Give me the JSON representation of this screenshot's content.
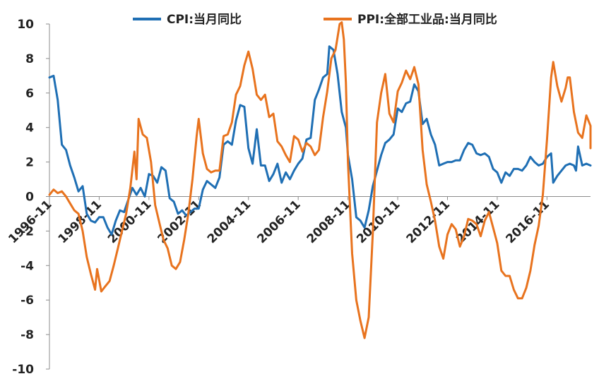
{
  "chart_data": {
    "type": "line",
    "title": "",
    "xlabel": "",
    "ylabel": "",
    "ylim": [
      -10,
      10
    ],
    "yticks": [
      -10,
      -8,
      -6,
      -4,
      -2,
      0,
      2,
      4,
      6,
      8,
      10
    ],
    "ytick_labels": [
      "-10",
      "-8",
      "-6",
      "-4",
      "-2",
      "0",
      "2",
      "4",
      "6",
      "8",
      "10"
    ],
    "xlim": [
      "1996-11",
      "2018-08"
    ],
    "xticks": [
      "1996-11",
      "1998-11",
      "2000-11",
      "2002-11",
      "2004-11",
      "2006-11",
      "2008-11",
      "2010-11",
      "2012-11",
      "2014-11",
      "2016-11"
    ],
    "legend_position": "top",
    "grid": false,
    "series": [
      {
        "name": "CPI:当月同比",
        "color": "#1f6fb4",
        "points": [
          [
            "1996-11",
            6.9
          ],
          [
            "1997-01",
            7.0
          ],
          [
            "1997-03",
            5.6
          ],
          [
            "1997-05",
            3.0
          ],
          [
            "1997-07",
            2.7
          ],
          [
            "1997-09",
            1.8
          ],
          [
            "1997-11",
            1.1
          ],
          [
            "1998-01",
            0.3
          ],
          [
            "1998-03",
            0.6
          ],
          [
            "1998-05",
            -1.0
          ],
          [
            "1998-07",
            -1.4
          ],
          [
            "1998-09",
            -1.5
          ],
          [
            "1998-11",
            -1.2
          ],
          [
            "1999-01",
            -1.2
          ],
          [
            "1999-03",
            -1.8
          ],
          [
            "1999-05",
            -2.2
          ],
          [
            "1999-07",
            -1.4
          ],
          [
            "1999-09",
            -0.8
          ],
          [
            "1999-11",
            -0.9
          ],
          [
            "2000-01",
            -0.2
          ],
          [
            "2000-03",
            0.5
          ],
          [
            "2000-05",
            0.1
          ],
          [
            "2000-07",
            0.5
          ],
          [
            "2000-09",
            0.0
          ],
          [
            "2000-11",
            1.3
          ],
          [
            "2001-01",
            1.2
          ],
          [
            "2001-03",
            0.8
          ],
          [
            "2001-05",
            1.7
          ],
          [
            "2001-07",
            1.5
          ],
          [
            "2001-09",
            -0.1
          ],
          [
            "2001-11",
            -0.3
          ],
          [
            "2002-01",
            -1.0
          ],
          [
            "2002-03",
            -0.8
          ],
          [
            "2002-05",
            -1.1
          ],
          [
            "2002-07",
            -0.9
          ],
          [
            "2002-09",
            -0.7
          ],
          [
            "2002-11",
            -0.7
          ],
          [
            "2003-01",
            0.4
          ],
          [
            "2003-03",
            0.9
          ],
          [
            "2003-05",
            0.7
          ],
          [
            "2003-07",
            0.5
          ],
          [
            "2003-09",
            1.1
          ],
          [
            "2003-11",
            3.0
          ],
          [
            "2004-01",
            3.2
          ],
          [
            "2004-03",
            3.0
          ],
          [
            "2004-05",
            4.4
          ],
          [
            "2004-07",
            5.3
          ],
          [
            "2004-09",
            5.2
          ],
          [
            "2004-11",
            2.8
          ],
          [
            "2005-01",
            1.9
          ],
          [
            "2005-03",
            3.9
          ],
          [
            "2005-05",
            1.8
          ],
          [
            "2005-07",
            1.8
          ],
          [
            "2005-09",
            0.9
          ],
          [
            "2005-11",
            1.3
          ],
          [
            "2006-01",
            1.9
          ],
          [
            "2006-03",
            0.8
          ],
          [
            "2006-05",
            1.4
          ],
          [
            "2006-07",
            1.0
          ],
          [
            "2006-09",
            1.5
          ],
          [
            "2006-11",
            1.9
          ],
          [
            "2007-01",
            2.2
          ],
          [
            "2007-03",
            3.3
          ],
          [
            "2007-05",
            3.4
          ],
          [
            "2007-07",
            5.6
          ],
          [
            "2007-09",
            6.2
          ],
          [
            "2007-11",
            6.9
          ],
          [
            "2008-01",
            7.1
          ],
          [
            "2008-02",
            8.7
          ],
          [
            "2008-04",
            8.5
          ],
          [
            "2008-06",
            7.1
          ],
          [
            "2008-08",
            4.9
          ],
          [
            "2008-10",
            4.0
          ],
          [
            "2008-11",
            2.4
          ],
          [
            "2009-01",
            1.0
          ],
          [
            "2009-03",
            -1.2
          ],
          [
            "2009-05",
            -1.4
          ],
          [
            "2009-07",
            -1.8
          ],
          [
            "2009-09",
            -0.8
          ],
          [
            "2009-11",
            0.6
          ],
          [
            "2010-01",
            1.5
          ],
          [
            "2010-03",
            2.4
          ],
          [
            "2010-05",
            3.1
          ],
          [
            "2010-07",
            3.3
          ],
          [
            "2010-09",
            3.6
          ],
          [
            "2010-11",
            5.1
          ],
          [
            "2011-01",
            4.9
          ],
          [
            "2011-03",
            5.4
          ],
          [
            "2011-05",
            5.5
          ],
          [
            "2011-07",
            6.5
          ],
          [
            "2011-09",
            6.1
          ],
          [
            "2011-11",
            4.2
          ],
          [
            "2012-01",
            4.5
          ],
          [
            "2012-03",
            3.6
          ],
          [
            "2012-05",
            3.0
          ],
          [
            "2012-07",
            1.8
          ],
          [
            "2012-09",
            1.9
          ],
          [
            "2012-11",
            2.0
          ],
          [
            "2013-01",
            2.0
          ],
          [
            "2013-03",
            2.1
          ],
          [
            "2013-05",
            2.1
          ],
          [
            "2013-07",
            2.7
          ],
          [
            "2013-09",
            3.1
          ],
          [
            "2013-11",
            3.0
          ],
          [
            "2014-01",
            2.5
          ],
          [
            "2014-03",
            2.4
          ],
          [
            "2014-05",
            2.5
          ],
          [
            "2014-07",
            2.3
          ],
          [
            "2014-09",
            1.6
          ],
          [
            "2014-11",
            1.4
          ],
          [
            "2015-01",
            0.8
          ],
          [
            "2015-03",
            1.4
          ],
          [
            "2015-05",
            1.2
          ],
          [
            "2015-07",
            1.6
          ],
          [
            "2015-09",
            1.6
          ],
          [
            "2015-11",
            1.5
          ],
          [
            "2016-01",
            1.8
          ],
          [
            "2016-03",
            2.3
          ],
          [
            "2016-05",
            2.0
          ],
          [
            "2016-07",
            1.8
          ],
          [
            "2016-09",
            1.9
          ],
          [
            "2016-11",
            2.3
          ],
          [
            "2017-01",
            2.5
          ],
          [
            "2017-02",
            0.8
          ],
          [
            "2017-04",
            1.2
          ],
          [
            "2017-06",
            1.5
          ],
          [
            "2017-08",
            1.8
          ],
          [
            "2017-10",
            1.9
          ],
          [
            "2017-12",
            1.8
          ],
          [
            "2018-01",
            1.5
          ],
          [
            "2018-02",
            2.9
          ],
          [
            "2018-04",
            1.8
          ],
          [
            "2018-06",
            1.9
          ],
          [
            "2018-08",
            1.8
          ]
        ]
      },
      {
        "name": "PPI:全部工业品:当月同比",
        "color": "#e8731e",
        "points": [
          [
            "1996-11",
            0.1
          ],
          [
            "1997-01",
            0.4
          ],
          [
            "1997-03",
            0.2
          ],
          [
            "1997-05",
            0.3
          ],
          [
            "1997-07",
            0.0
          ],
          [
            "1997-09",
            -0.4
          ],
          [
            "1997-11",
            -0.8
          ],
          [
            "1998-01",
            -1.0
          ],
          [
            "1998-03",
            -2.0
          ],
          [
            "1998-05",
            -3.5
          ],
          [
            "1998-07",
            -4.5
          ],
          [
            "1998-09",
            -5.4
          ],
          [
            "1998-10",
            -4.2
          ],
          [
            "1998-12",
            -5.5
          ],
          [
            "1999-02",
            -5.2
          ],
          [
            "1999-04",
            -4.9
          ],
          [
            "1999-06",
            -4.0
          ],
          [
            "1999-08",
            -3.0
          ],
          [
            "1999-10",
            -2.0
          ],
          [
            "1999-12",
            -1.0
          ],
          [
            "2000-02",
            0.5
          ],
          [
            "2000-04",
            2.6
          ],
          [
            "2000-05",
            1.0
          ],
          [
            "2000-06",
            4.5
          ],
          [
            "2000-08",
            3.6
          ],
          [
            "2000-10",
            3.4
          ],
          [
            "2000-12",
            2.0
          ],
          [
            "2001-02",
            -0.5
          ],
          [
            "2001-04",
            -1.5
          ],
          [
            "2001-06",
            -2.5
          ],
          [
            "2001-08",
            -3.0
          ],
          [
            "2001-10",
            -4.0
          ],
          [
            "2001-12",
            -4.2
          ],
          [
            "2002-02",
            -3.8
          ],
          [
            "2002-04",
            -2.5
          ],
          [
            "2002-06",
            -1.0
          ],
          [
            "2002-08",
            1.0
          ],
          [
            "2002-10",
            3.5
          ],
          [
            "2002-11",
            4.5
          ],
          [
            "2003-01",
            2.5
          ],
          [
            "2003-03",
            1.6
          ],
          [
            "2003-05",
            1.4
          ],
          [
            "2003-07",
            1.5
          ],
          [
            "2003-09",
            1.5
          ],
          [
            "2003-11",
            3.5
          ],
          [
            "2004-01",
            3.6
          ],
          [
            "2004-03",
            4.3
          ],
          [
            "2004-05",
            5.9
          ],
          [
            "2004-07",
            6.4
          ],
          [
            "2004-09",
            7.6
          ],
          [
            "2004-11",
            8.4
          ],
          [
            "2005-01",
            7.4
          ],
          [
            "2005-03",
            5.9
          ],
          [
            "2005-05",
            5.6
          ],
          [
            "2005-07",
            5.9
          ],
          [
            "2005-09",
            4.6
          ],
          [
            "2005-11",
            4.8
          ],
          [
            "2006-01",
            3.2
          ],
          [
            "2006-03",
            2.9
          ],
          [
            "2006-05",
            2.4
          ],
          [
            "2006-07",
            2.0
          ],
          [
            "2006-09",
            3.5
          ],
          [
            "2006-11",
            3.3
          ],
          [
            "2007-01",
            2.6
          ],
          [
            "2007-03",
            3.1
          ],
          [
            "2007-05",
            2.9
          ],
          [
            "2007-07",
            2.4
          ],
          [
            "2007-09",
            2.7
          ],
          [
            "2007-11",
            4.6
          ],
          [
            "2008-01",
            6.1
          ],
          [
            "2008-03",
            8.0
          ],
          [
            "2008-05",
            8.5
          ],
          [
            "2008-07",
            10.0
          ],
          [
            "2008-08",
            10.1
          ],
          [
            "2008-09",
            9.1
          ],
          [
            "2008-10",
            6.6
          ],
          [
            "2008-11",
            2.0
          ],
          [
            "2009-01",
            -3.3
          ],
          [
            "2009-03",
            -6.0
          ],
          [
            "2009-05",
            -7.2
          ],
          [
            "2009-07",
            -8.2
          ],
          [
            "2009-09",
            -7.0
          ],
          [
            "2009-11",
            -2.1
          ],
          [
            "2010-01",
            4.3
          ],
          [
            "2010-03",
            6.0
          ],
          [
            "2010-05",
            7.1
          ],
          [
            "2010-07",
            4.8
          ],
          [
            "2010-09",
            4.3
          ],
          [
            "2010-11",
            6.1
          ],
          [
            "2011-01",
            6.6
          ],
          [
            "2011-03",
            7.3
          ],
          [
            "2011-05",
            6.8
          ],
          [
            "2011-07",
            7.5
          ],
          [
            "2011-09",
            6.5
          ],
          [
            "2011-11",
            2.7
          ],
          [
            "2012-01",
            0.7
          ],
          [
            "2012-03",
            -0.3
          ],
          [
            "2012-05",
            -1.4
          ],
          [
            "2012-07",
            -2.9
          ],
          [
            "2012-09",
            -3.6
          ],
          [
            "2012-11",
            -2.2
          ],
          [
            "2013-01",
            -1.6
          ],
          [
            "2013-03",
            -1.9
          ],
          [
            "2013-05",
            -2.9
          ],
          [
            "2013-07",
            -2.3
          ],
          [
            "2013-09",
            -1.3
          ],
          [
            "2013-11",
            -1.4
          ],
          [
            "2014-01",
            -1.6
          ],
          [
            "2014-03",
            -2.3
          ],
          [
            "2014-05",
            -1.4
          ],
          [
            "2014-07",
            -0.9
          ],
          [
            "2014-09",
            -1.8
          ],
          [
            "2014-11",
            -2.7
          ],
          [
            "2015-01",
            -4.3
          ],
          [
            "2015-03",
            -4.6
          ],
          [
            "2015-05",
            -4.6
          ],
          [
            "2015-07",
            -5.4
          ],
          [
            "2015-09",
            -5.9
          ],
          [
            "2015-11",
            -5.9
          ],
          [
            "2016-01",
            -5.3
          ],
          [
            "2016-03",
            -4.3
          ],
          [
            "2016-05",
            -2.8
          ],
          [
            "2016-07",
            -1.7
          ],
          [
            "2016-09",
            0.1
          ],
          [
            "2016-11",
            3.3
          ],
          [
            "2017-01",
            6.9
          ],
          [
            "2017-02",
            7.8
          ],
          [
            "2017-04",
            6.4
          ],
          [
            "2017-06",
            5.5
          ],
          [
            "2017-08",
            6.3
          ],
          [
            "2017-09",
            6.9
          ],
          [
            "2017-10",
            6.9
          ],
          [
            "2017-12",
            4.9
          ],
          [
            "2018-02",
            3.7
          ],
          [
            "2018-04",
            3.4
          ],
          [
            "2018-06",
            4.7
          ],
          [
            "2018-08",
            4.1
          ],
          [
            "2018-10",
            3.3
          ],
          [
            "2018-12",
            2.8
          ],
          [
            "2019-01",
            3.4
          ]
        ]
      }
    ]
  }
}
